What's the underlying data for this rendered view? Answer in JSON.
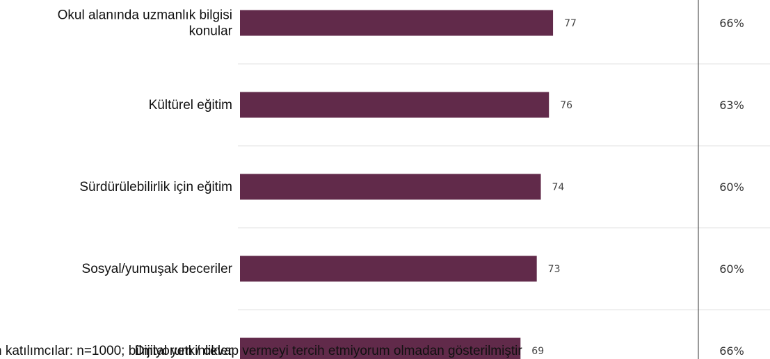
{
  "chart_data": {
    "type": "bar",
    "orientation": "horizontal",
    "categories": [
      "Okul alanında uzmanlık bilgisi konular",
      "Kültürel eğitim",
      "Sürdürülebilirlik için eğitim",
      "Sosyal/yumuşak beceriler",
      "Dijital yetkinlikler"
    ],
    "category_lines": [
      [
        "Okul alanında uzmanlık bilgisi",
        "konular"
      ],
      [
        "Kültürel eğitim"
      ],
      [
        "Sürdürülebilirlik için eğitim"
      ],
      [
        "Sosyal/yumuşak beceriler"
      ],
      [
        "Dijital yetkinlikler"
      ]
    ],
    "series": [
      {
        "values": [
          77,
          76,
          74,
          73,
          69
        ]
      }
    ],
    "side_percentages": [
      "66%",
      "63%",
      "60%",
      "60%",
      "66%"
    ],
    "bar_color": "#612a4a",
    "grid": true,
    "xlim": [
      0,
      100
    ]
  },
  "footnote": "n katılımcılar: n=1000; bilmiyorum / cevap vermeyi tercih etmiyorum olmadan gösterilmiştir"
}
